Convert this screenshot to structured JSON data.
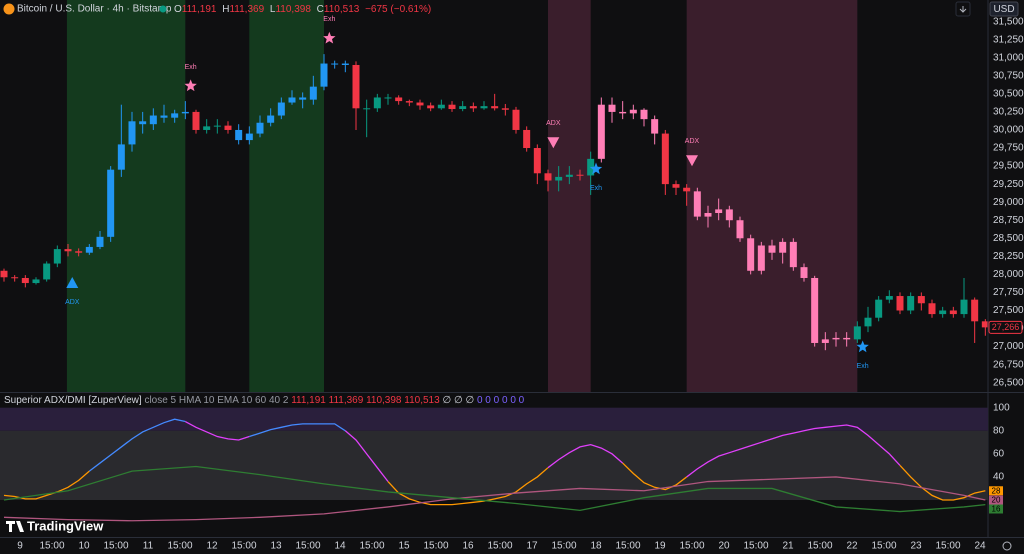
{
  "header": {
    "symbol": "Bitcoin / U.S. Dollar · 4h · Bitstamp",
    "legend": [
      {
        "key": "O",
        "value": "111,191"
      },
      {
        "key": "H",
        "value": "111,369"
      },
      {
        "key": "L",
        "value": "110,398"
      },
      {
        "key": "C",
        "value": "110,513"
      }
    ],
    "change": "−675 (−0.61%)",
    "currency": "USD"
  },
  "indicator_header": {
    "name": "Superior ADX/DMI [ZuperView]",
    "params": "close 5 HMA 10 EMA 10 60 40 2",
    "values": "111,191 111,369 110,398 110,513",
    "nulls": "∅ ∅ ∅",
    "zeros": "0 0 0 0 0 0"
  },
  "brand": "TradingView",
  "chart_data": [
    {
      "type": "candlestick",
      "open": [
        28050,
        27960,
        27950,
        27880,
        27930,
        28150,
        28350,
        28320,
        28300,
        28380,
        28520,
        29450,
        29800,
        30120,
        30080,
        30200,
        30170,
        30230,
        30250,
        30000,
        30050,
        30060,
        30000,
        29860,
        29950,
        30100,
        30200,
        30380,
        30450,
        30420,
        30600,
        30920,
        30920,
        30900,
        30300,
        30300,
        30450,
        30450,
        30400,
        30380,
        30340,
        30300,
        30350,
        30290,
        30330,
        30300,
        30330,
        30300,
        30280,
        30000,
        29750,
        29400,
        29300,
        29350,
        29380,
        29370,
        29600,
        30350,
        30250,
        30230,
        30280,
        30150,
        29950,
        29250,
        29200,
        29150,
        28800,
        28850,
        28900,
        28750,
        28500,
        28050,
        28400,
        28300,
        28450,
        28100,
        27950,
        27050,
        27100,
        27120,
        27100,
        27280,
        27400,
        27650,
        27700,
        27500,
        27700,
        27600,
        27450,
        27500,
        27450,
        27650,
        27350
      ],
      "high": [
        28080,
        27990,
        27990,
        27960,
        28180,
        28400,
        28420,
        28360,
        28420,
        28600,
        29500,
        30350,
        30250,
        30250,
        30300,
        30350,
        30280,
        30400,
        30280,
        30150,
        30150,
        30120,
        30080,
        30050,
        30200,
        30300,
        30450,
        30550,
        30520,
        30750,
        31050,
        30960,
        30960,
        30950,
        30420,
        30500,
        30500,
        30480,
        30420,
        30420,
        30380,
        30420,
        30400,
        30400,
        30380,
        30400,
        30500,
        30360,
        30320,
        30050,
        29800,
        29450,
        29500,
        29500,
        29450,
        29700,
        30450,
        30450,
        30400,
        30350,
        30300,
        30200,
        30000,
        29300,
        29250,
        29200,
        28950,
        29050,
        28950,
        28800,
        28550,
        28450,
        28480,
        28500,
        28500,
        28150,
        27980,
        27200,
        27200,
        27200,
        27350,
        27550,
        27700,
        27780,
        27750,
        27750,
        27750,
        27650,
        27550,
        27550,
        27950,
        27680,
        27380
      ],
      "low": [
        27900,
        27900,
        27820,
        27860,
        27900,
        28100,
        28250,
        28250,
        28270,
        28350,
        28450,
        29350,
        29700,
        29950,
        30000,
        30100,
        30100,
        30150,
        29950,
        29950,
        29950,
        29950,
        29800,
        29800,
        29900,
        30050,
        30150,
        30350,
        30300,
        30350,
        30550,
        30850,
        30800,
        30000,
        29900,
        30250,
        30350,
        30350,
        30330,
        30280,
        30260,
        30280,
        30250,
        30260,
        30250,
        30280,
        30270,
        30200,
        29950,
        29700,
        29250,
        29150,
        29150,
        29250,
        29300,
        29100,
        29550,
        30100,
        30150,
        30150,
        30050,
        29800,
        29100,
        29100,
        28950,
        28750,
        28650,
        28750,
        28650,
        28450,
        28000,
        28000,
        28200,
        28150,
        28050,
        27900,
        27000,
        26950,
        27000,
        27000,
        27050,
        27200,
        27350,
        27600,
        27450,
        27450,
        27500,
        27400,
        27400,
        27400,
        27400,
        27050,
        27150
      ],
      "close": [
        27960,
        27950,
        27880,
        27930,
        28150,
        28350,
        28320,
        28300,
        28380,
        28520,
        29450,
        29800,
        30120,
        30080,
        30200,
        30170,
        30230,
        30250,
        30000,
        30050,
        30060,
        30000,
        29860,
        29950,
        30100,
        30200,
        30380,
        30450,
        30420,
        30600,
        30920,
        30920,
        30900,
        30300,
        30300,
        30450,
        30450,
        30400,
        30380,
        30340,
        30300,
        30350,
        30290,
        30330,
        30300,
        30330,
        30300,
        30280,
        30000,
        29750,
        29400,
        29300,
        29350,
        29380,
        29370,
        29600,
        30350,
        30250,
        30230,
        30280,
        30150,
        29950,
        29250,
        29200,
        29150,
        28800,
        28850,
        28900,
        28750,
        28500,
        28050,
        28400,
        28300,
        28450,
        28100,
        27950,
        27050,
        27100,
        27120,
        27100,
        27280,
        27400,
        27650,
        27700,
        27500,
        27700,
        27600,
        27450,
        27500,
        27450,
        27650,
        27350,
        27266
      ],
      "colors": [
        "#f23645",
        "#f23645",
        "#f23645",
        "#089981",
        "#089981",
        "#089981",
        "#f23645",
        "#f23645",
        "#2196f3",
        "#2196f3",
        "#2196f3",
        "#2196f3",
        "#2196f3",
        "#2196f3",
        "#2196f3",
        "#2196f3",
        "#2196f3",
        "#2196f3",
        "#f23645",
        "#089981",
        "#089981",
        "#f23645",
        "#2196f3",
        "#2196f3",
        "#2196f3",
        "#2196f3",
        "#2196f3",
        "#2196f3",
        "#2196f3",
        "#2196f3",
        "#2196f3",
        "#2196f3",
        "#2196f3",
        "#f23645",
        "#089981",
        "#089981",
        "#089981",
        "#f23645",
        "#f23645",
        "#f23645",
        "#f23645",
        "#089981",
        "#f23645",
        "#089981",
        "#f23645",
        "#089981",
        "#f23645",
        "#f23645",
        "#f23645",
        "#f23645",
        "#f23645",
        "#f23645",
        "#089981",
        "#089981",
        "#f23645",
        "#089981",
        "#ff7eb6",
        "#ff7eb6",
        "#ff7eb6",
        "#ff7eb6",
        "#ff7eb6",
        "#ff7eb6",
        "#f23645",
        "#f23645",
        "#f23645",
        "#ff7eb6",
        "#ff7eb6",
        "#ff7eb6",
        "#ff7eb6",
        "#ff7eb6",
        "#ff7eb6",
        "#ff7eb6",
        "#ff7eb6",
        "#ff7eb6",
        "#ff7eb6",
        "#ff7eb6",
        "#ff7eb6",
        "#ff7eb6",
        "#ff7eb6",
        "#ff7eb6",
        "#089981",
        "#089981",
        "#089981",
        "#089981",
        "#f23645",
        "#089981",
        "#f23645",
        "#f23645",
        "#089981",
        "#f23645",
        "#089981",
        "#f23645",
        "#f23645"
      ],
      "zones": [
        {
          "from": 5.9,
          "to": 17.0,
          "color": "#143a1e"
        },
        {
          "from": 23.0,
          "to": 30.0,
          "color": "#143a1e"
        },
        {
          "from": 51.0,
          "to": 55.0,
          "color": "#3a1e2c"
        },
        {
          "from": 64.0,
          "to": 80.0,
          "color": "#3a1e2c"
        }
      ],
      "markers": [
        {
          "x": 6.4,
          "y": 27880,
          "shape": "triangle-up",
          "color": "#2196f3",
          "label": "ADX",
          "label_side": "below"
        },
        {
          "x": 17.5,
          "y": 30610,
          "shape": "star",
          "color": "#ff7eb6",
          "label": "Exh",
          "label_side": "above"
        },
        {
          "x": 30.5,
          "y": 31270,
          "shape": "star",
          "color": "#ff7eb6",
          "label": "Exh",
          "label_side": "above"
        },
        {
          "x": 51.5,
          "y": 29830,
          "shape": "triangle-down",
          "color": "#ff7eb6",
          "label": "ADX",
          "label_side": "above"
        },
        {
          "x": 55.5,
          "y": 29460,
          "shape": "star",
          "color": "#2196f3",
          "label": "Exh",
          "label_side": "below"
        },
        {
          "x": 64.5,
          "y": 29580,
          "shape": "triangle-down",
          "color": "#ff7eb6",
          "label": "ADX",
          "label_side": "above"
        },
        {
          "x": 80.5,
          "y": 26995,
          "shape": "star",
          "color": "#2196f3",
          "label": "Exh",
          "label_side": "below"
        }
      ],
      "price_tag": {
        "value": 27266,
        "label": "27,266",
        "color": "#f23645"
      },
      "xlim": [
        -0.375,
        92.25
      ],
      "ylim": [
        26371,
        31800
      ],
      "yticks": [
        {
          "value": 31500,
          "label": "31,500"
        },
        {
          "value": 31250,
          "label": "31,250"
        },
        {
          "value": 31000,
          "label": "31,000"
        },
        {
          "value": 30750,
          "label": "30,750"
        },
        {
          "value": 30500,
          "label": "30,500"
        },
        {
          "value": 30250,
          "label": "30,250"
        },
        {
          "value": 30000,
          "label": "30,000"
        },
        {
          "value": 29750,
          "label": "29,750"
        },
        {
          "value": 29500,
          "label": "29,500"
        },
        {
          "value": 29250,
          "label": "29,250"
        },
        {
          "value": 29000,
          "label": "29,000"
        },
        {
          "value": 28750,
          "label": "28,750"
        },
        {
          "value": 28500,
          "label": "28,500"
        },
        {
          "value": 28250,
          "label": "28,250"
        },
        {
          "value": 28000,
          "label": "28,000"
        },
        {
          "value": 27750,
          "label": "27,750"
        },
        {
          "value": 27500,
          "label": "27,500"
        },
        {
          "value": 27250,
          "label": "27,250"
        },
        {
          "value": 27000,
          "label": "27,000"
        },
        {
          "value": 26750,
          "label": "26,750"
        },
        {
          "value": 26500,
          "label": "26,500"
        }
      ],
      "xticks": [
        {
          "value": 1.5,
          "label": "9"
        },
        {
          "value": 4.5,
          "label": "15:00"
        },
        {
          "value": 7.5,
          "label": "10"
        },
        {
          "value": 10.5,
          "label": "15:00"
        },
        {
          "value": 13.5,
          "label": "11"
        },
        {
          "value": 16.5,
          "label": "15:00"
        },
        {
          "value": 19.5,
          "label": "12"
        },
        {
          "value": 22.5,
          "label": "15:00"
        },
        {
          "value": 25.5,
          "label": "13"
        },
        {
          "value": 28.5,
          "label": "15:00"
        },
        {
          "value": 31.5,
          "label": "14"
        },
        {
          "value": 34.5,
          "label": "15:00"
        },
        {
          "value": 37.5,
          "label": "15"
        },
        {
          "value": 40.5,
          "label": "15:00"
        },
        {
          "value": 43.5,
          "label": "16"
        },
        {
          "value": 46.5,
          "label": "15:00"
        },
        {
          "value": 49.5,
          "label": "17"
        },
        {
          "value": 52.5,
          "label": "15:00"
        },
        {
          "value": 55.5,
          "label": "18"
        },
        {
          "value": 58.5,
          "label": "15:00"
        },
        {
          "value": 61.5,
          "label": "19"
        },
        {
          "value": 64.5,
          "label": "15:00"
        },
        {
          "value": 67.5,
          "label": "20"
        },
        {
          "value": 70.5,
          "label": "15:00"
        },
        {
          "value": 73.5,
          "label": "21"
        },
        {
          "value": 76.5,
          "label": "15:00"
        },
        {
          "value": 79.5,
          "label": "22"
        },
        {
          "value": 82.5,
          "label": "15:00"
        },
        {
          "value": 85.5,
          "label": "23"
        },
        {
          "value": 88.5,
          "label": "15:00"
        },
        {
          "value": 91.5,
          "label": "24"
        }
      ]
    },
    {
      "type": "line",
      "series": [
        {
          "name": "ADX",
          "values": [
            24,
            23,
            21,
            21,
            24,
            27,
            31,
            37,
            45,
            52,
            59,
            66,
            73,
            79,
            83,
            87,
            90,
            88,
            83,
            79,
            75,
            73,
            72,
            75,
            78,
            81,
            83,
            85,
            86,
            86,
            86,
            86,
            80,
            72,
            60,
            48,
            36,
            26,
            21,
            18,
            16,
            16,
            16,
            17,
            18,
            19,
            21,
            23,
            27,
            34,
            40,
            48,
            55,
            61,
            66,
            68,
            65,
            60,
            52,
            43,
            35,
            31,
            29,
            33,
            40,
            47,
            53,
            58,
            61,
            64,
            67,
            70,
            73,
            76,
            78,
            80,
            82,
            83,
            84,
            85,
            83,
            76,
            68,
            60,
            50,
            40,
            31,
            24,
            20,
            20,
            22,
            26,
            28
          ],
          "color": "#ff9800",
          "color_segments": [
            {
              "from": 0,
              "to": 8,
              "color": "#ff9800"
            },
            {
              "from": 8,
              "to": 17,
              "color": "#448aff"
            },
            {
              "from": 17,
              "to": 23,
              "color": "#e040fb"
            },
            {
              "from": 23,
              "to": 32,
              "color": "#448aff"
            },
            {
              "from": 32,
              "to": 36,
              "color": "#e040fb"
            },
            {
              "from": 36,
              "to": 51,
              "color": "#ff9800"
            },
            {
              "from": 51,
              "to": 58,
              "color": "#e040fb"
            },
            {
              "from": 58,
              "to": 64,
              "color": "#ff9800"
            },
            {
              "from": 64,
              "to": 84,
              "color": "#e040fb"
            },
            {
              "from": 84,
              "to": 92,
              "color": "#ff9800"
            }
          ]
        },
        {
          "name": "DI-",
          "x": [
            0,
            6,
            12,
            18,
            24,
            30,
            36,
            42,
            48,
            54,
            60,
            66,
            72,
            78,
            84,
            90,
            92
          ],
          "values": [
            5,
            3,
            2,
            3,
            5,
            8,
            14,
            21,
            26,
            30,
            28,
            36,
            38,
            40,
            34,
            24,
            20
          ],
          "color": "#b0567f"
        },
        {
          "name": "DI+",
          "x": [
            0,
            6,
            12,
            18,
            24,
            30,
            36,
            42,
            48,
            54,
            60,
            66,
            72,
            78,
            84,
            90,
            92
          ],
          "values": [
            20,
            28,
            45,
            49,
            42,
            34,
            27,
            22,
            17,
            11,
            22,
            30,
            30,
            14,
            10,
            14,
            16
          ],
          "color": "#2e7d32"
        }
      ],
      "bands": [
        {
          "from": 80,
          "to": 100,
          "color": "#2a1f3c"
        },
        {
          "from": 20,
          "to": 80,
          "color": "#2a2a2e"
        }
      ],
      "ylim": [
        -6,
        111
      ],
      "yticks": [
        100,
        80,
        60,
        40
      ]
    }
  ]
}
